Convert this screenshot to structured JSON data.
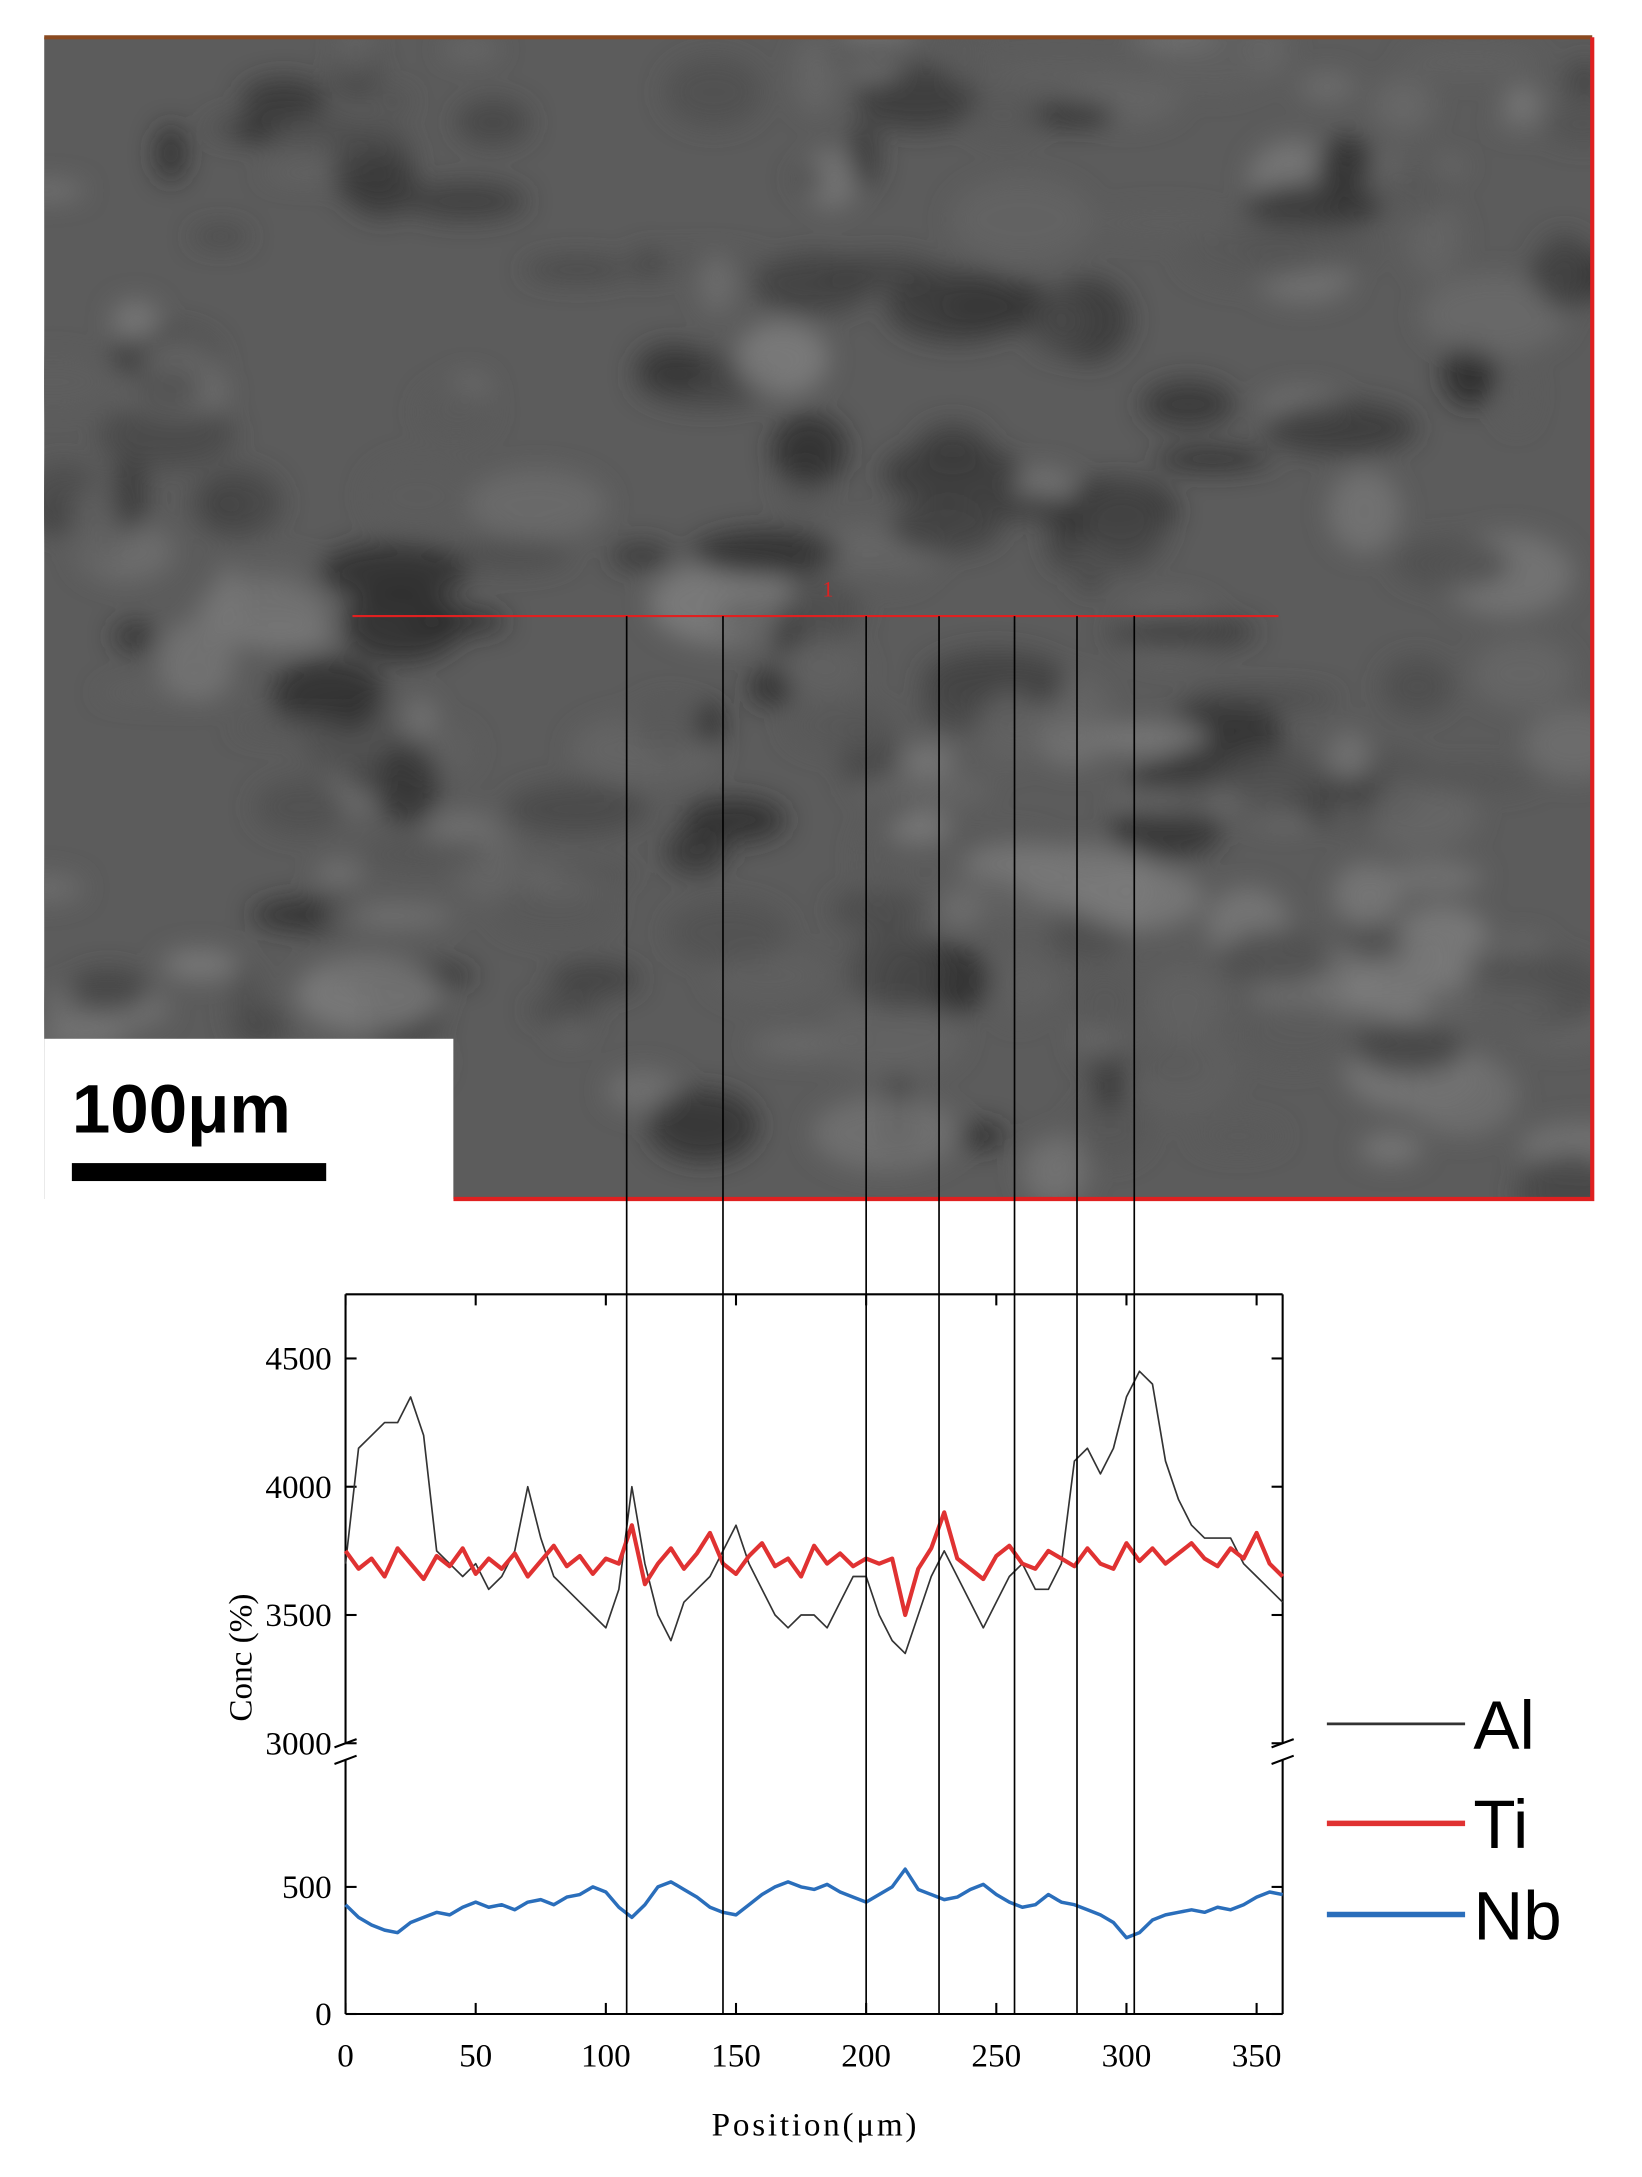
{
  "chart_data": {
    "type": "line",
    "scale_bar": "100μm",
    "scan_line_label": "1",
    "xlabel": "Position(μm)",
    "ylabel": "Conc (%)",
    "xlim": [
      0,
      360
    ],
    "ylim": [
      0,
      4750
    ],
    "ybreak": [
      1000,
      3000
    ],
    "xticks": [
      0,
      50,
      100,
      150,
      200,
      250,
      300,
      350
    ],
    "yticks": [
      0,
      500,
      3000,
      3500,
      4000,
      4500
    ],
    "guide_lines_x": [
      108,
      145,
      200,
      228,
      257,
      281,
      303
    ],
    "x": [
      0,
      5,
      10,
      15,
      20,
      25,
      30,
      35,
      40,
      45,
      50,
      55,
      60,
      65,
      70,
      75,
      80,
      85,
      90,
      95,
      100,
      105,
      110,
      115,
      120,
      125,
      130,
      135,
      140,
      145,
      150,
      155,
      160,
      165,
      170,
      175,
      180,
      185,
      190,
      195,
      200,
      205,
      210,
      215,
      220,
      225,
      230,
      235,
      240,
      245,
      250,
      255,
      260,
      265,
      270,
      275,
      280,
      285,
      290,
      295,
      300,
      305,
      310,
      315,
      320,
      325,
      330,
      335,
      340,
      345,
      350,
      355,
      360
    ],
    "series": [
      {
        "name": "Al",
        "color": "#333333",
        "values": [
          3700,
          4150,
          4200,
          4250,
          4250,
          4350,
          4200,
          3750,
          3700,
          3650,
          3700,
          3600,
          3650,
          3750,
          4000,
          3800,
          3650,
          3600,
          3550,
          3500,
          3450,
          3600,
          4000,
          3700,
          3500,
          3400,
          3550,
          3600,
          3650,
          3750,
          3850,
          3700,
          3600,
          3500,
          3450,
          3500,
          3500,
          3450,
          3550,
          3650,
          3650,
          3500,
          3400,
          3350,
          3500,
          3650,
          3750,
          3650,
          3550,
          3450,
          3550,
          3650,
          3700,
          3600,
          3600,
          3700,
          4100,
          4150,
          4050,
          4150,
          4350,
          4450,
          4400,
          4100,
          3950,
          3850,
          3800,
          3800,
          3800,
          3700,
          3650,
          3600,
          3550
        ]
      },
      {
        "name": "Ti",
        "color": "#e03232",
        "values": [
          3750,
          3680,
          3720,
          3650,
          3760,
          3700,
          3640,
          3730,
          3690,
          3760,
          3660,
          3720,
          3680,
          3740,
          3650,
          3710,
          3770,
          3690,
          3730,
          3660,
          3720,
          3700,
          3850,
          3620,
          3700,
          3760,
          3680,
          3740,
          3820,
          3700,
          3660,
          3730,
          3780,
          3690,
          3720,
          3650,
          3770,
          3700,
          3740,
          3690,
          3720,
          3700,
          3720,
          3500,
          3680,
          3760,
          3900,
          3720,
          3680,
          3640,
          3730,
          3770,
          3700,
          3680,
          3750,
          3720,
          3690,
          3760,
          3700,
          3680,
          3780,
          3710,
          3760,
          3700,
          3740,
          3780,
          3720,
          3690,
          3760,
          3720,
          3820,
          3700,
          3650
        ]
      },
      {
        "name": "Nb",
        "color": "#2a6ebb",
        "values": [
          430,
          380,
          350,
          330,
          320,
          360,
          380,
          400,
          390,
          420,
          440,
          420,
          430,
          410,
          440,
          450,
          430,
          460,
          470,
          500,
          480,
          420,
          380,
          430,
          500,
          520,
          490,
          460,
          420,
          400,
          390,
          430,
          470,
          500,
          520,
          500,
          490,
          510,
          480,
          460,
          440,
          470,
          500,
          570,
          490,
          470,
          450,
          460,
          490,
          510,
          470,
          440,
          420,
          430,
          470,
          440,
          430,
          410,
          390,
          360,
          300,
          320,
          370,
          390,
          400,
          410,
          400,
          420,
          410,
          430,
          460,
          480,
          470
        ]
      }
    ]
  }
}
